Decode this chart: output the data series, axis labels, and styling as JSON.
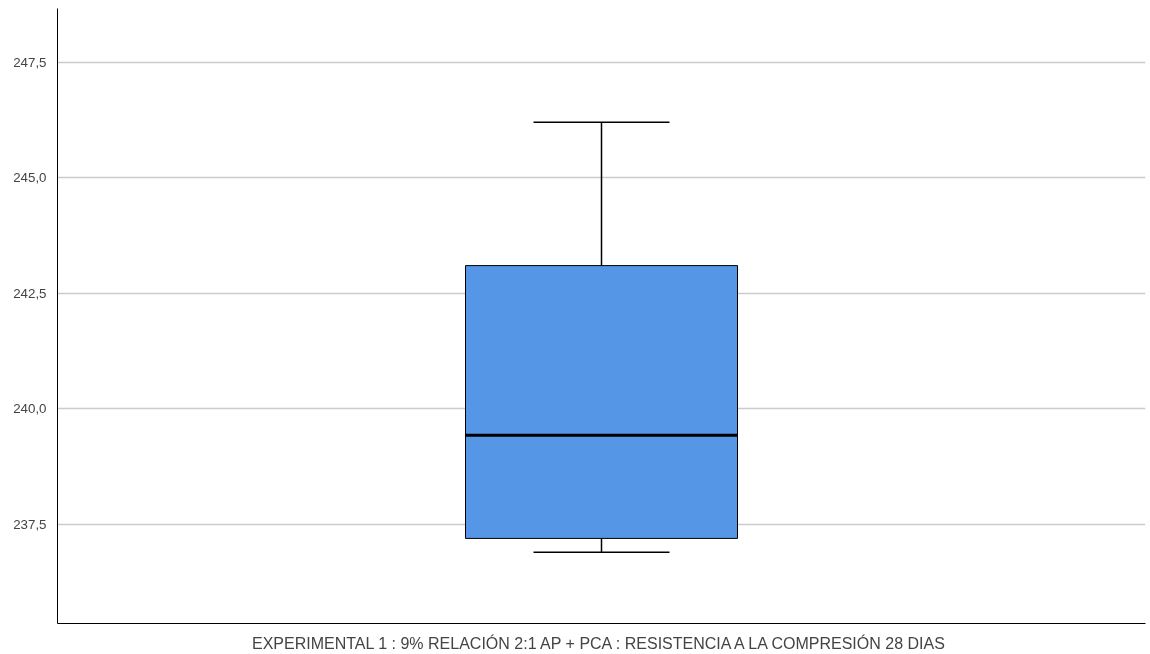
{
  "chart_data": {
    "type": "box",
    "xlabel": "EXPERIMENTAL 1 : 9% RELACIÓN 2:1 AP + PCA : RESISTENCIA A LA COMPRESIÓN 28 DIAS",
    "categories": [
      null
    ],
    "boxes": [
      {
        "low": 236.9,
        "q1": 237.2,
        "median": 239.43,
        "q3": 243.1,
        "high": 246.2
      }
    ],
    "color": "#5596e6",
    "ylim": [
      235.36,
      248.66
    ],
    "yticks": [
      {
        "value": 237.5,
        "label": "237,5"
      },
      {
        "value": 240.0,
        "label": "240,0"
      },
      {
        "value": 242.5,
        "label": "242,5"
      },
      {
        "value": 245.0,
        "label": "245,0"
      },
      {
        "value": 247.5,
        "label": "247,5"
      }
    ],
    "grid": "y"
  }
}
